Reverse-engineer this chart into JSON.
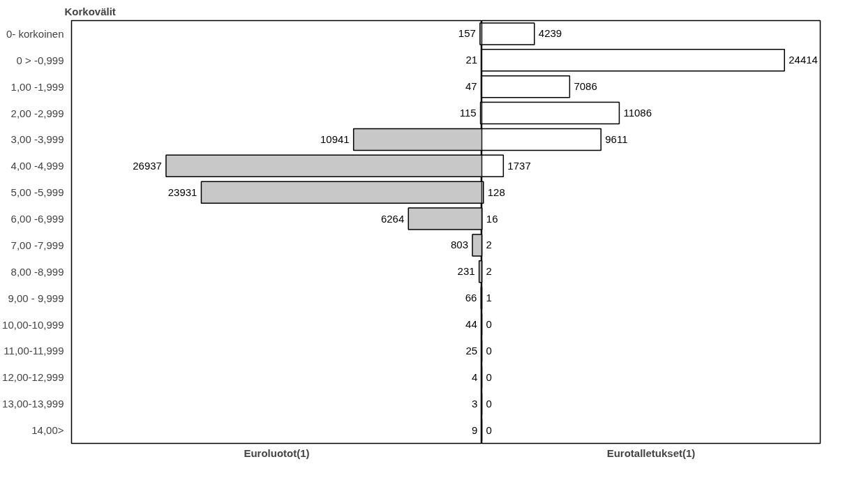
{
  "chart_data": [
    {
      "type": "bar",
      "orientation": "horizontal",
      "title": "Korkovälit",
      "xlabel": "Euroluotot(1)",
      "categories": [
        "0- korkoinen",
        "0 > -0,999",
        "1,00 -1,999",
        "2,00 -2,999",
        "3,00 -3,999",
        "4,00 -4,999",
        "5,00 -5,999",
        "6,00 -6,999",
        "7,00 -7,999",
        "8,00 -8,999",
        "9,00 - 9,999",
        "10,00-10,999",
        "11,00-11,999",
        "12,00-12,999",
        "13,00-13,999",
        "14,00>"
      ],
      "series": [
        {
          "color": "#c8c8c8",
          "values": [
            157,
            21,
            47,
            115,
            10941,
            26937,
            23931,
            6264,
            803,
            231,
            66,
            44,
            25,
            4,
            3,
            9
          ]
        }
      ],
      "xlim": [
        35000,
        0
      ],
      "data_labels": true,
      "tick_labels": "y",
      "grid": false
    },
    {
      "type": "bar",
      "orientation": "horizontal",
      "xlabel": "Eurotalletukset(1)",
      "categories": [
        null,
        null,
        null,
        null,
        null,
        null,
        null,
        null,
        null,
        null,
        null,
        null,
        null,
        null,
        null,
        null
      ],
      "series": [
        {
          "color": "#ffffff",
          "values": [
            4239,
            24414,
            7086,
            11086,
            9611,
            1737,
            128,
            16,
            2,
            2,
            1,
            0,
            0,
            0,
            0,
            0
          ]
        }
      ],
      "xlim": [
        0,
        27300
      ],
      "data_labels": true,
      "tick_labels": false,
      "grid": false
    }
  ]
}
